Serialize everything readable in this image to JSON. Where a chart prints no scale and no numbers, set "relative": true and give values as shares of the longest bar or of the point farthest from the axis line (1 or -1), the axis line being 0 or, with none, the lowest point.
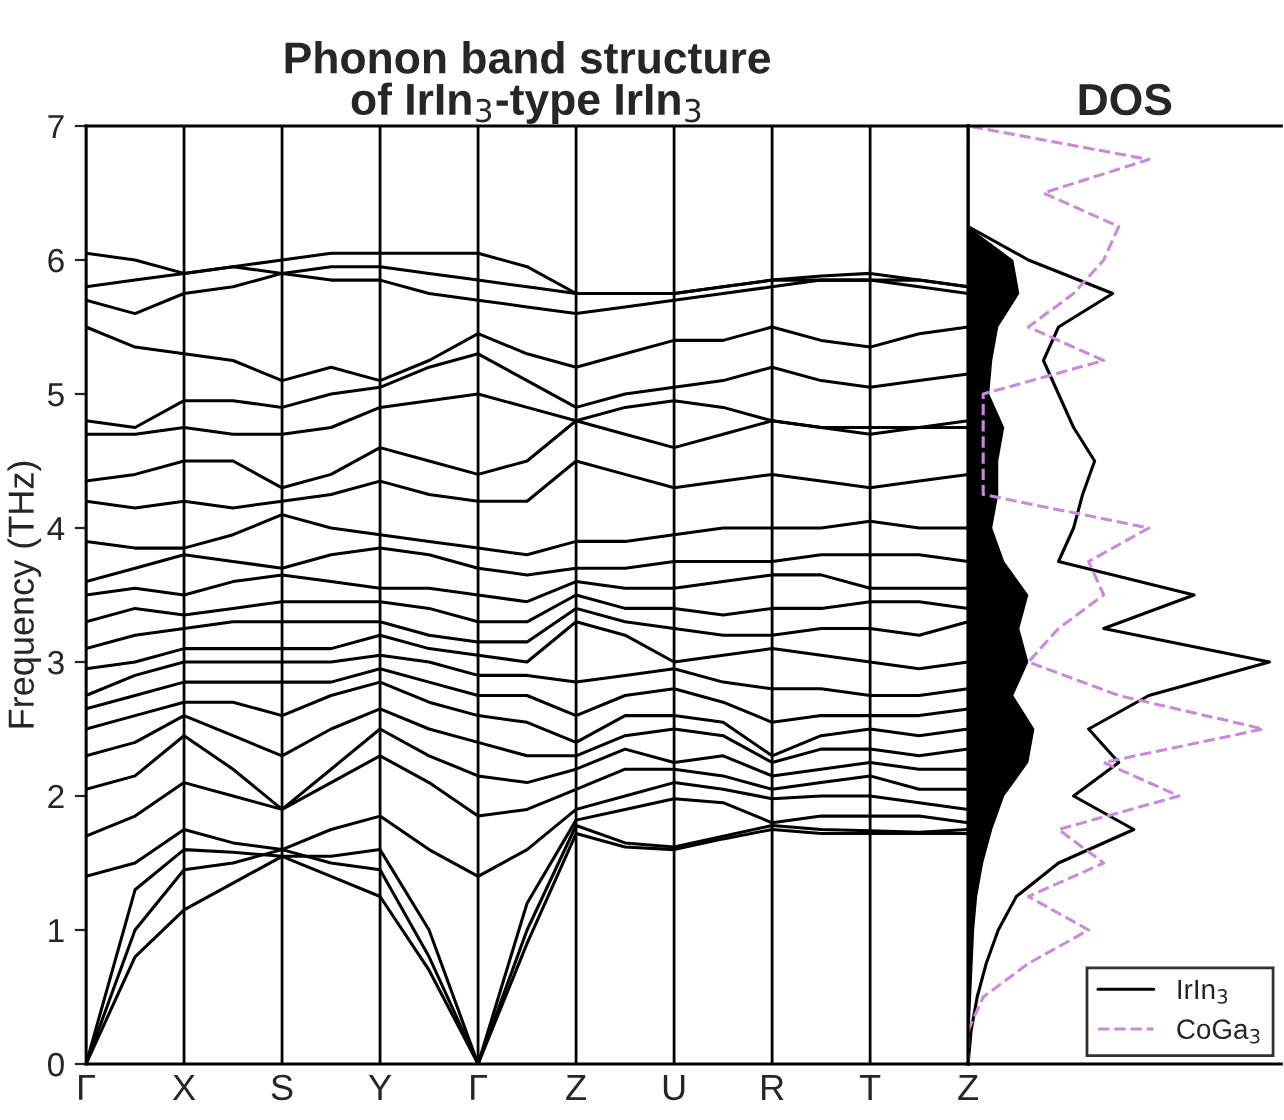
{
  "chart_data": [
    {
      "type": "line",
      "title": "Phonon band structure\nof IrIn$_{3}$-type IrIn$_{3}$",
      "ylabel": "Frequency (THz)",
      "color": "#000000",
      "categories": [
        "Γ",
        null,
        "X",
        null,
        "S",
        null,
        "Y",
        null,
        "Γ",
        null,
        "Z",
        null,
        "U",
        null,
        "R",
        null,
        "T",
        null,
        "Z"
      ],
      "ylim": [
        0,
        7
      ],
      "yticks": [
        0,
        1,
        2,
        3,
        4,
        5,
        6,
        7
      ],
      "grid": "x",
      "legend": false,
      "series": [
        {
          "values": [
            0,
            0.8,
            1.15,
            1.35,
            1.55,
            1.4,
            1.25,
            0.7,
            0,
            0.9,
            1.72,
            1.62,
            1.6,
            1.68,
            1.75,
            1.72,
            1.72,
            1.72,
            1.72
          ]
        },
        {
          "values": [
            0,
            1.0,
            1.45,
            1.5,
            1.6,
            1.5,
            1.45,
            0.8,
            0,
            1.0,
            1.78,
            1.65,
            1.62,
            1.7,
            1.78,
            1.75,
            1.74,
            1.73,
            1.75
          ]
        },
        {
          "values": [
            0,
            1.3,
            1.6,
            1.58,
            1.55,
            1.55,
            1.6,
            1.0,
            0,
            1.2,
            1.82,
            1.9,
            1.98,
            1.95,
            1.8,
            1.85,
            1.85,
            1.85,
            1.8
          ]
        },
        {
          "values": [
            1.4,
            1.5,
            1.75,
            1.65,
            1.6,
            1.75,
            1.85,
            1.6,
            1.4,
            1.6,
            1.9,
            2.0,
            2.1,
            2.05,
            1.98,
            2.0,
            2.0,
            1.95,
            1.9
          ]
        },
        {
          "values": [
            1.7,
            1.85,
            2.1,
            2.0,
            1.9,
            2.1,
            2.3,
            2.1,
            1.85,
            1.9,
            2.05,
            2.2,
            2.2,
            2.15,
            2.05,
            2.1,
            2.15,
            2.05,
            2.05
          ]
        },
        {
          "values": [
            2.05,
            2.15,
            2.45,
            2.2,
            1.9,
            2.2,
            2.5,
            2.3,
            2.15,
            2.1,
            2.2,
            2.35,
            2.25,
            2.3,
            2.15,
            2.2,
            2.25,
            2.2,
            2.2
          ]
        },
        {
          "values": [
            2.3,
            2.4,
            2.6,
            2.45,
            2.3,
            2.5,
            2.65,
            2.5,
            2.4,
            2.3,
            2.3,
            2.45,
            2.5,
            2.45,
            2.25,
            2.35,
            2.35,
            2.3,
            2.35
          ]
        },
        {
          "values": [
            2.5,
            2.6,
            2.7,
            2.7,
            2.6,
            2.75,
            2.85,
            2.7,
            2.6,
            2.55,
            2.4,
            2.6,
            2.6,
            2.55,
            2.3,
            2.45,
            2.5,
            2.45,
            2.5
          ]
        },
        {
          "values": [
            2.65,
            2.75,
            2.85,
            2.85,
            2.85,
            2.85,
            2.95,
            2.85,
            2.75,
            2.75,
            2.6,
            2.75,
            2.8,
            2.7,
            2.55,
            2.6,
            2.6,
            2.6,
            2.65
          ]
        },
        {
          "values": [
            2.75,
            2.9,
            3.0,
            3.0,
            3.0,
            3.0,
            3.05,
            3.0,
            2.9,
            2.9,
            2.85,
            2.9,
            2.95,
            2.85,
            2.8,
            2.8,
            2.75,
            2.75,
            2.8
          ]
        },
        {
          "values": [
            2.95,
            3.0,
            3.1,
            3.1,
            3.1,
            3.1,
            3.2,
            3.1,
            3.05,
            3.0,
            3.3,
            3.2,
            3.0,
            3.05,
            3.1,
            3.05,
            3.0,
            2.95,
            3.0
          ]
        },
        {
          "values": [
            3.1,
            3.2,
            3.25,
            3.3,
            3.3,
            3.3,
            3.3,
            3.2,
            3.15,
            3.15,
            3.4,
            3.3,
            3.25,
            3.2,
            3.2,
            3.25,
            3.25,
            3.2,
            3.3
          ]
        },
        {
          "values": [
            3.3,
            3.4,
            3.35,
            3.4,
            3.45,
            3.45,
            3.45,
            3.4,
            3.3,
            3.3,
            3.5,
            3.4,
            3.4,
            3.35,
            3.4,
            3.4,
            3.45,
            3.45,
            3.4
          ]
        },
        {
          "values": [
            3.5,
            3.55,
            3.5,
            3.6,
            3.65,
            3.6,
            3.55,
            3.55,
            3.5,
            3.45,
            3.6,
            3.55,
            3.55,
            3.6,
            3.65,
            3.65,
            3.55,
            3.55,
            3.55
          ]
        },
        {
          "values": [
            3.6,
            3.7,
            3.8,
            3.75,
            3.7,
            3.8,
            3.85,
            3.8,
            3.7,
            3.65,
            3.7,
            3.7,
            3.75,
            3.75,
            3.75,
            3.8,
            3.8,
            3.8,
            3.75
          ]
        },
        {
          "values": [
            3.9,
            3.85,
            3.85,
            3.95,
            4.1,
            4.0,
            3.95,
            3.9,
            3.85,
            3.8,
            3.9,
            3.9,
            3.95,
            4.0,
            4.0,
            4.0,
            4.05,
            4.0,
            4.0
          ]
        },
        {
          "values": [
            4.2,
            4.15,
            4.2,
            4.15,
            4.2,
            4.25,
            4.35,
            4.25,
            4.2,
            4.2,
            4.5,
            4.4,
            4.3,
            4.35,
            4.4,
            4.35,
            4.3,
            4.35,
            4.4
          ]
        },
        {
          "values": [
            4.35,
            4.4,
            4.5,
            4.5,
            4.3,
            4.4,
            4.6,
            4.5,
            4.4,
            4.5,
            4.8,
            4.7,
            4.6,
            4.7,
            4.8,
            4.75,
            4.7,
            4.75,
            4.8
          ]
        },
        {
          "values": [
            4.7,
            4.7,
            4.75,
            4.7,
            4.7,
            4.75,
            4.9,
            4.95,
            5.0,
            4.9,
            4.8,
            4.9,
            4.95,
            4.9,
            4.8,
            4.75,
            4.75,
            4.75,
            4.75
          ]
        },
        {
          "values": [
            4.8,
            4.75,
            4.95,
            4.95,
            4.9,
            5.0,
            5.05,
            5.2,
            5.3,
            5.1,
            4.9,
            5.0,
            5.05,
            5.1,
            5.2,
            5.1,
            5.05,
            5.1,
            5.15
          ]
        },
        {
          "values": [
            5.5,
            5.35,
            5.3,
            5.25,
            5.1,
            5.2,
            5.1,
            5.25,
            5.45,
            5.3,
            5.2,
            5.3,
            5.4,
            5.4,
            5.5,
            5.4,
            5.35,
            5.45,
            5.5
          ]
        },
        {
          "values": [
            5.7,
            5.6,
            5.75,
            5.8,
            5.9,
            5.85,
            5.85,
            5.75,
            5.7,
            5.65,
            5.6,
            5.65,
            5.7,
            5.75,
            5.8,
            5.85,
            5.85,
            5.8,
            5.75
          ]
        },
        {
          "values": [
            5.8,
            5.85,
            5.9,
            5.95,
            5.9,
            5.95,
            5.95,
            5.9,
            5.85,
            5.8,
            5.75,
            5.75,
            5.75,
            5.8,
            5.85,
            5.85,
            5.85,
            5.85,
            5.8
          ]
        },
        {
          "values": [
            6.05,
            6.0,
            5.9,
            5.95,
            6.0,
            6.05,
            6.05,
            6.05,
            6.05,
            5.95,
            5.75,
            5.75,
            5.75,
            5.8,
            5.85,
            5.88,
            5.9,
            5.85,
            5.8
          ]
        }
      ]
    },
    {
      "type": "line",
      "title": "DOS",
      "orientation": "horizontal",
      "relative": true,
      "tick_labels": false,
      "ylim": [
        0,
        7
      ],
      "legend": "bottom right",
      "x": [
        0,
        0.25,
        0.5,
        0.75,
        1,
        1.25,
        1.5,
        1.75,
        2,
        2.25,
        2.5,
        2.75,
        3,
        3.25,
        3.5,
        3.75,
        4,
        4.25,
        4.5,
        4.75,
        5,
        5.25,
        5.5,
        5.75,
        6,
        6.25,
        6.5,
        6.75,
        7
      ],
      "series": [
        {
          "type": "area",
          "color": "#000000",
          "values": [
            0,
            0.005,
            0.01,
            0.015,
            0.02,
            0.03,
            0.05,
            0.08,
            0.12,
            0.2,
            0.22,
            0.15,
            0.2,
            0.17,
            0.2,
            0.12,
            0.08,
            0.1,
            0.1,
            0.12,
            0.07,
            0.08,
            0.1,
            0.17,
            0.15,
            0,
            0,
            0,
            0
          ]
        },
        {
          "name": "IrIn$_{3}$",
          "color": "#000000",
          "line_style": "solid",
          "values": [
            0,
            0.01,
            0.03,
            0.06,
            0.1,
            0.16,
            0.3,
            0.55,
            0.35,
            0.5,
            0.4,
            0.6,
            1,
            0.45,
            0.75,
            0.3,
            0.35,
            0.38,
            0.42,
            0.35,
            0.3,
            0.25,
            0.3,
            0.48,
            0.2,
            0,
            0,
            0,
            0
          ]
        },
        {
          "name": "CoGa$_{3}$",
          "color": "#cc88dd",
          "line_style": "dashed",
          "values": [
            0,
            0,
            0.05,
            0.2,
            0.4,
            0.2,
            0.45,
            0.3,
            0.7,
            0.45,
            0.98,
            0.5,
            0.2,
            0.3,
            0.45,
            0.4,
            0.6,
            0.05,
            0.05,
            0.05,
            0.05,
            0.45,
            0.2,
            0.35,
            0.45,
            0.5,
            0.25,
            0.6,
            0
          ]
        }
      ]
    }
  ]
}
